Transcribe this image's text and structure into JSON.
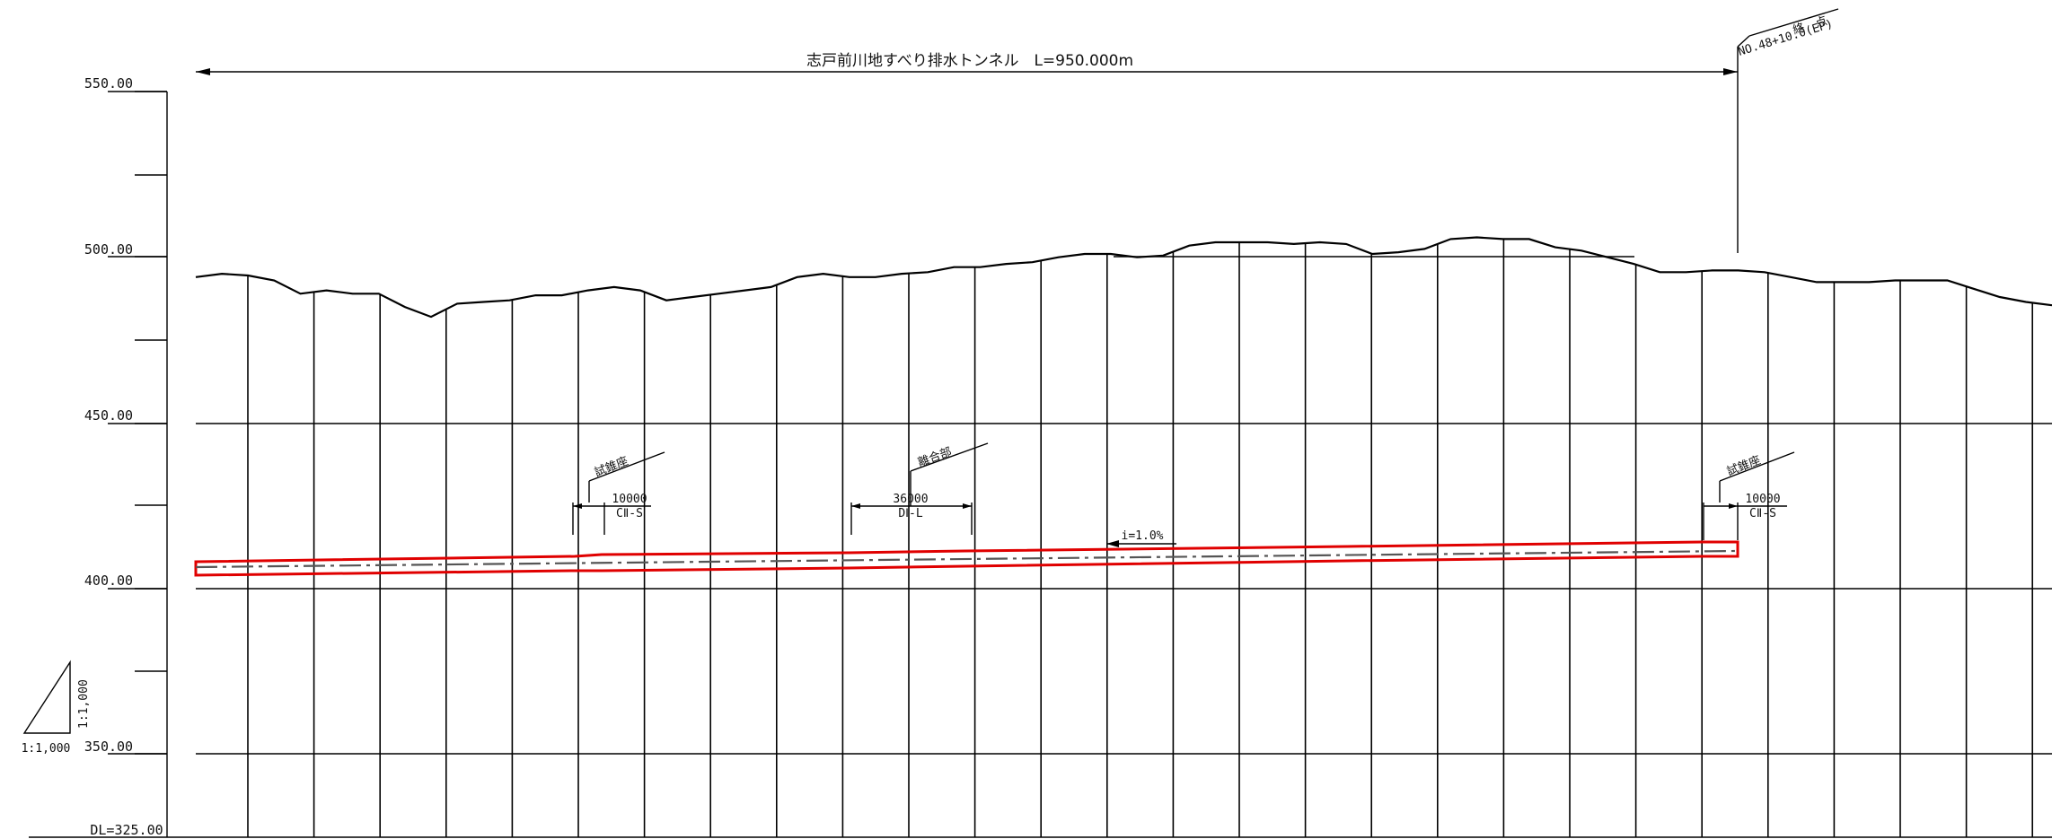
{
  "title": "志戸前川地すべり排水トンネル　L=950.000m",
  "end_point": {
    "label": "終　点",
    "station": "NO.48+10.0(EP)"
  },
  "elevation_labels": [
    "550.00",
    "500.00",
    "450.00",
    "400.00",
    "350.00"
  ],
  "datum_label": "DL=325.00",
  "scale": {
    "vertical": "1:1,000",
    "horizontal": "1:1,000"
  },
  "annotations": [
    {
      "name": "試錐座",
      "length": "10000",
      "class": "CⅡ-S"
    },
    {
      "name": "離合部",
      "length": "36000",
      "class": "DⅠ-L"
    },
    {
      "name": "試錐座",
      "length": "10000",
      "class": "CⅡ-S"
    }
  ],
  "gradient": "i=1.0%",
  "colors": {
    "tunnel": "#e00000",
    "line": "#000000",
    "centerline": "#555555"
  },
  "ground_profile": [
    {
      "elev": 494
    },
    {
      "elev": 495
    },
    {
      "elev": 494.5
    },
    {
      "elev": 493
    },
    {
      "elev": 489
    },
    {
      "elev": 490
    },
    {
      "elev": 489
    },
    {
      "elev": 489
    },
    {
      "elev": 485
    },
    {
      "elev": 482
    },
    {
      "elev": 486
    },
    {
      "elev": 486.5
    },
    {
      "elev": 487
    },
    {
      "elev": 488.5
    },
    {
      "elev": 488.5
    },
    {
      "elev": 490
    },
    {
      "elev": 491
    },
    {
      "elev": 490
    },
    {
      "elev": 487
    },
    {
      "elev": 488
    },
    {
      "elev": 489
    },
    {
      "elev": 490
    },
    {
      "elev": 491
    },
    {
      "elev": 494
    },
    {
      "elev": 495
    },
    {
      "elev": 494
    },
    {
      "elev": 494
    },
    {
      "elev": 495
    },
    {
      "elev": 495.5
    },
    {
      "elev": 497
    },
    {
      "elev": 497
    },
    {
      "elev": 498
    },
    {
      "elev": 498.5
    },
    {
      "elev": 500
    },
    {
      "elev": 501
    },
    {
      "elev": 501
    },
    {
      "elev": 500
    },
    {
      "elev": 500.5
    },
    {
      "elev": 503.5
    },
    {
      "elev": 504.5
    },
    {
      "elev": 504.5
    },
    {
      "elev": 504.5
    },
    {
      "elev": 504
    },
    {
      "elev": 504.5
    },
    {
      "elev": 504
    },
    {
      "elev": 501
    },
    {
      "elev": 501.5
    },
    {
      "elev": 502.5
    },
    {
      "elev": 505.5
    },
    {
      "elev": 506
    },
    {
      "elev": 505.5
    },
    {
      "elev": 505.5
    },
    {
      "elev": 503
    },
    {
      "elev": 502
    },
    {
      "elev": 500
    },
    {
      "elev": 498
    },
    {
      "elev": 495.5
    },
    {
      "elev": 495.5
    },
    {
      "elev": 496
    },
    {
      "elev": 496
    },
    {
      "elev": 495.5
    },
    {
      "elev": 494
    },
    {
      "elev": 492.5
    },
    {
      "elev": 492.5
    },
    {
      "elev": 492.5
    },
    {
      "elev": 493
    },
    {
      "elev": 493
    },
    {
      "elev": 493
    },
    {
      "elev": 490.5
    },
    {
      "elev": 488
    },
    {
      "elev": 486.5
    },
    {
      "elev": 485.5
    }
  ]
}
